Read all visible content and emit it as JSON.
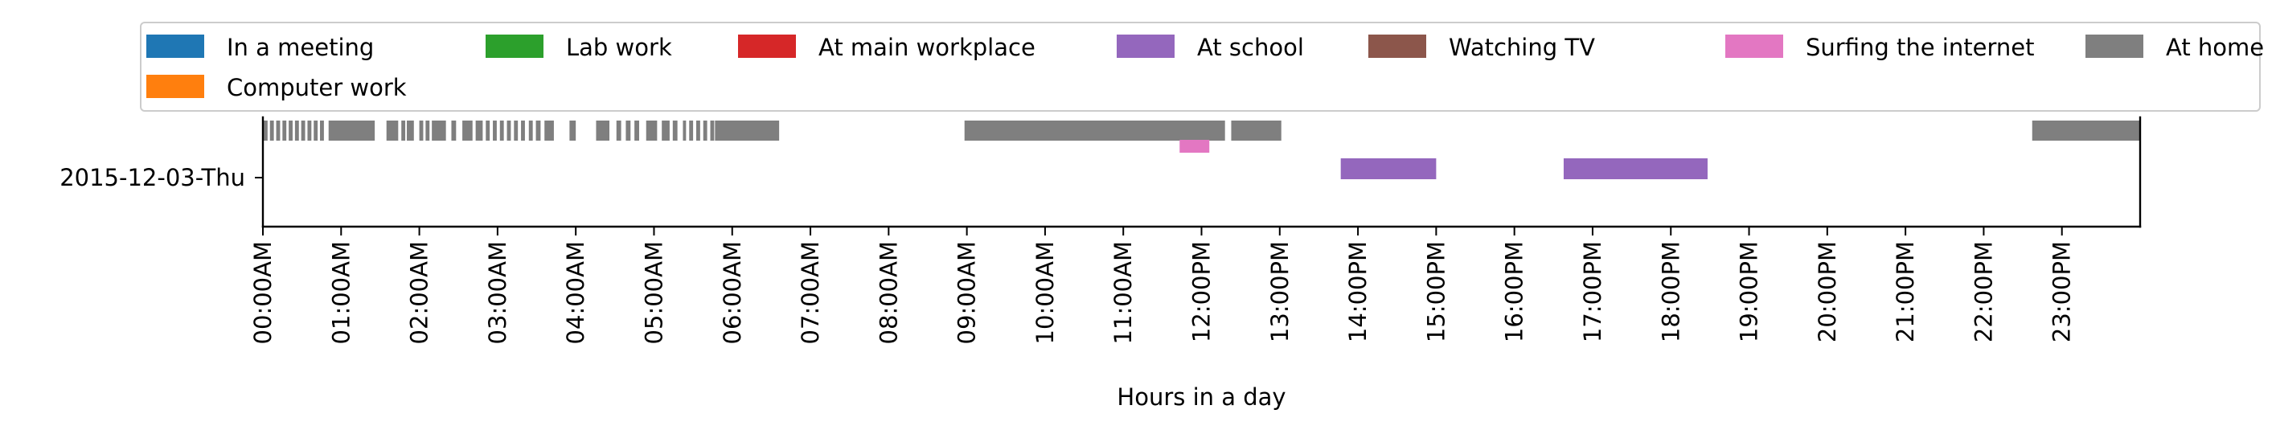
{
  "chart_data": {
    "type": "timeline",
    "xlabel": "Hours in a day",
    "ylabel": "",
    "x_range_hours": [
      0,
      24
    ],
    "row_label": "2015-12-03-Thu",
    "tick_labels": [
      "00:00AM",
      "01:00AM",
      "02:00AM",
      "03:00AM",
      "04:00AM",
      "05:00AM",
      "06:00AM",
      "07:00AM",
      "08:00AM",
      "09:00AM",
      "10:00AM",
      "11:00AM",
      "12:00PM",
      "13:00PM",
      "14:00PM",
      "15:00PM",
      "16:00PM",
      "17:00PM",
      "18:00PM",
      "19:00PM",
      "20:00PM",
      "21:00PM",
      "22:00PM",
      "23:00PM"
    ],
    "legend_placement": "top (spanning width, inside plot)",
    "legend": [
      {
        "name": "In a meeting",
        "color": "#1f77b4"
      },
      {
        "name": "Lab work",
        "color": "#2ca02c"
      },
      {
        "name": "At main workplace",
        "color": "#d62728"
      },
      {
        "name": "At school",
        "color": "#9467bd"
      },
      {
        "name": "Watching TV",
        "color": "#8c564b"
      },
      {
        "name": "Surfing the internet",
        "color": "#e377c2"
      },
      {
        "name": "At home",
        "color": "#7f7f7f"
      },
      {
        "name": "Computer work",
        "color": "#ff7f0e"
      }
    ],
    "series": [
      {
        "name": "At home",
        "color": "#7f7f7f",
        "lane": "upper",
        "intervals_hours": [
          [
            0.0,
            0.06
          ],
          [
            0.09,
            0.14
          ],
          [
            0.17,
            0.22
          ],
          [
            0.25,
            0.3
          ],
          [
            0.33,
            0.38
          ],
          [
            0.41,
            0.46
          ],
          [
            0.49,
            0.54
          ],
          [
            0.57,
            0.62
          ],
          [
            0.65,
            0.7
          ],
          [
            0.73,
            0.78
          ],
          [
            0.84,
            1.43
          ],
          [
            1.58,
            1.73
          ],
          [
            1.77,
            1.82
          ],
          [
            1.84,
            1.93
          ],
          [
            2.0,
            2.05
          ],
          [
            2.08,
            2.13
          ],
          [
            2.16,
            2.34
          ],
          [
            2.41,
            2.47
          ],
          [
            2.55,
            2.68
          ],
          [
            2.72,
            2.81
          ],
          [
            2.85,
            2.9
          ],
          [
            2.94,
            2.99
          ],
          [
            3.03,
            3.08
          ],
          [
            3.12,
            3.17
          ],
          [
            3.21,
            3.26
          ],
          [
            3.3,
            3.35
          ],
          [
            3.4,
            3.45
          ],
          [
            3.49,
            3.55
          ],
          [
            3.6,
            3.72
          ],
          [
            3.92,
            4.0
          ],
          [
            4.26,
            4.43
          ],
          [
            4.52,
            4.58
          ],
          [
            4.64,
            4.7
          ],
          [
            4.75,
            4.81
          ],
          [
            4.9,
            5.04
          ],
          [
            5.1,
            5.2
          ],
          [
            5.24,
            5.3
          ],
          [
            5.37,
            5.41
          ],
          [
            5.45,
            5.5
          ],
          [
            5.54,
            5.59
          ],
          [
            5.63,
            5.68
          ],
          [
            5.72,
            5.77
          ],
          [
            5.78,
            6.6
          ],
          [
            8.97,
            12.3
          ],
          [
            12.38,
            13.02
          ],
          [
            22.62,
            24.0
          ]
        ]
      },
      {
        "name": "Surfing the internet",
        "color": "#e377c2",
        "lane": "middle",
        "intervals_hours": [
          [
            11.72,
            12.1
          ]
        ]
      },
      {
        "name": "At school",
        "color": "#9467bd",
        "lane": "lower",
        "intervals_hours": [
          [
            13.78,
            15.0
          ],
          [
            16.63,
            18.47
          ]
        ]
      }
    ]
  }
}
